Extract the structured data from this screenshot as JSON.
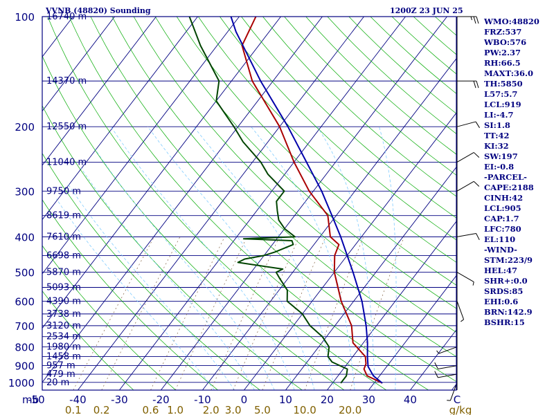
{
  "header": {
    "title": "VVNB (48820) Sounding",
    "time": "1200Z 23 JUN 25"
  },
  "colors": {
    "frame": "#000080",
    "isobar": "#000080",
    "isotherm": "#000080",
    "dry_adiabat": "#00aa00",
    "moist_adiabat": "#80ccff",
    "mixing_ratio": "#806040",
    "temperature": "#aa0000",
    "dewpoint": "#004400",
    "parcel": "#0000aa",
    "axis_text": "#000080",
    "mixratio_text": "#806000",
    "wind": "#000000"
  },
  "stats": [
    "WMO:48820",
    "FRZ:537",
    "WBO:576",
    "PW:2.37",
    "RH:66.5",
    "MAXT:36.0",
    "TH:5850",
    "L57:5.7",
    "LCL:919",
    "LI:-4.7",
    "SI:1.8",
    "TT:42",
    "KI:32",
    "SW:197",
    "EI:-0.8",
    "-PARCEL-",
    "CAPE:2188",
    "CINH:42",
    "LCL:905",
    "CAP:1.7",
    "LFC:780",
    "EL:110",
    "-WIND-",
    "STM:223/9",
    "HEL:47",
    "SHR+:0.0",
    "SRDS:85",
    "EHI:0.6",
    "BRN:142.9",
    "BSHR:15"
  ],
  "chart_data": {
    "type": "skew-t",
    "xlabel": "C",
    "mixing_ratio_unit": "g/kg",
    "pressure_axis_unit": "mb",
    "pressure_ticks": [
      100,
      200,
      300,
      400,
      500,
      600,
      700,
      800,
      900,
      1000
    ],
    "temperature_ticks": [
      -50,
      -40,
      -30,
      -20,
      -10,
      0,
      10,
      20,
      30,
      40
    ],
    "mixing_ratio_ticks": [
      "0.1",
      "0.2",
      "0.6",
      "1.0",
      "2.0",
      "3.0",
      "5.0",
      "10.0",
      "20.0"
    ],
    "height_labels": [
      {
        "p": 100,
        "label": "16740 m"
      },
      {
        "p": 150,
        "label": "14370 m"
      },
      {
        "p": 200,
        "label": "12550 m"
      },
      {
        "p": 250,
        "label": "11040 m"
      },
      {
        "p": 300,
        "label": "9750 m"
      },
      {
        "p": 350,
        "label": "8619 m"
      },
      {
        "p": 400,
        "label": "7610 m"
      },
      {
        "p": 450,
        "label": "6698 m"
      },
      {
        "p": 500,
        "label": "5870 m"
      },
      {
        "p": 550,
        "label": "5093 m"
      },
      {
        "p": 600,
        "label": "4390 m"
      },
      {
        "p": 650,
        "label": "3738 m"
      },
      {
        "p": 700,
        "label": "3120 m"
      },
      {
        "p": 750,
        "label": "2534 m"
      },
      {
        "p": 800,
        "label": "1980 m"
      },
      {
        "p": 850,
        "label": "1458 m"
      },
      {
        "p": 900,
        "label": "957 m"
      },
      {
        "p": 950,
        "label": "479 m"
      },
      {
        "p": 1000,
        "label": "20 m"
      }
    ],
    "series": [
      {
        "key": "temperature",
        "points": [
          [
            1005,
            32.0
          ],
          [
            960,
            27.0
          ],
          [
            920,
            25.0
          ],
          [
            890,
            24.5
          ],
          [
            850,
            23.0
          ],
          [
            780,
            17.5
          ],
          [
            700,
            14.0
          ],
          [
            600,
            7.0
          ],
          [
            500,
            0.0
          ],
          [
            450,
            -3.0
          ],
          [
            420,
            -4.0
          ],
          [
            400,
            -7.5
          ],
          [
            350,
            -12.0
          ],
          [
            300,
            -21.0
          ],
          [
            250,
            -30.0
          ],
          [
            200,
            -40.0
          ],
          [
            150,
            -55.0
          ],
          [
            120,
            -64.0
          ],
          [
            100,
            -66.0
          ]
        ]
      },
      {
        "key": "dewpoint",
        "points": [
          [
            1005,
            22.0
          ],
          [
            960,
            22.0
          ],
          [
            920,
            21.0
          ],
          [
            880,
            16.0
          ],
          [
            850,
            14.0
          ],
          [
            800,
            12.5
          ],
          [
            750,
            9.0
          ],
          [
            700,
            4.0
          ],
          [
            650,
            0.0
          ],
          [
            600,
            -6.0
          ],
          [
            560,
            -8.0
          ],
          [
            520,
            -12.0
          ],
          [
            500,
            -14.0
          ],
          [
            490,
            -13.0
          ],
          [
            470,
            -25.0
          ],
          [
            460,
            -24.0
          ],
          [
            450,
            -20.0
          ],
          [
            440,
            -18.0
          ],
          [
            420,
            -15.0
          ],
          [
            410,
            -16.0
          ],
          [
            405,
            -28.0
          ],
          [
            400,
            -16.0
          ],
          [
            380,
            -20.0
          ],
          [
            360,
            -23.0
          ],
          [
            340,
            -25.0
          ],
          [
            320,
            -27.0
          ],
          [
            300,
            -27.0
          ],
          [
            270,
            -34.0
          ],
          [
            250,
            -38.0
          ],
          [
            220,
            -46.0
          ],
          [
            200,
            -51.0
          ],
          [
            170,
            -60.0
          ],
          [
            150,
            -63.0
          ],
          [
            120,
            -74.0
          ],
          [
            100,
            -82.0
          ]
        ]
      },
      {
        "key": "parcel",
        "points": [
          [
            1005,
            32.0
          ],
          [
            960,
            28.5
          ],
          [
            905,
            25.5
          ],
          [
            850,
            23.5
          ],
          [
            780,
            21.0
          ],
          [
            700,
            17.5
          ],
          [
            600,
            12.0
          ],
          [
            500,
            4.5
          ],
          [
            400,
            -5.0
          ],
          [
            350,
            -11.0
          ],
          [
            300,
            -18.0
          ],
          [
            250,
            -27.0
          ],
          [
            200,
            -38.0
          ],
          [
            150,
            -53.0
          ],
          [
            110,
            -68.0
          ],
          [
            100,
            -72.0
          ]
        ]
      }
    ],
    "wind_barbs": [
      {
        "p": 100,
        "dir": 90,
        "kt": 25
      },
      {
        "p": 150,
        "dir": 90,
        "kt": 20
      },
      {
        "p": 200,
        "dir": 75,
        "kt": 10
      },
      {
        "p": 250,
        "dir": 60,
        "kt": 10
      },
      {
        "p": 300,
        "dir": 60,
        "kt": 10
      },
      {
        "p": 400,
        "dir": 80,
        "kt": 10
      },
      {
        "p": 500,
        "dir": 120,
        "kt": 5
      },
      {
        "p": 600,
        "dir": 160,
        "kt": 5
      },
      {
        "p": 800,
        "dir": 250,
        "kt": 5
      },
      {
        "p": 900,
        "dir": 260,
        "kt": 10
      },
      {
        "p": 950,
        "dir": 260,
        "kt": 10
      },
      {
        "p": 1000,
        "dir": 200,
        "kt": 5
      }
    ]
  }
}
